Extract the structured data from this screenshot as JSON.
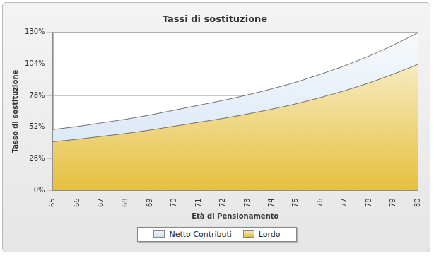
{
  "chart_data": {
    "type": "area",
    "title": "Tassi di sostituzione",
    "x_label": "Età di Pensionamento",
    "y_label": "Tasso di sostituzione",
    "categories": [
      "65",
      "66",
      "67",
      "68",
      "69",
      "70",
      "71",
      "72",
      "73",
      "74",
      "75",
      "76",
      "77",
      "78",
      "79",
      "80"
    ],
    "series": [
      {
        "name": "Netto Contributi",
        "color": "#cfe1f4",
        "values": [
          50,
          52.5,
          55.5,
          58.5,
          62,
          66,
          70,
          74,
          78.5,
          83.5,
          89,
          95.5,
          102.5,
          110.5,
          119.5,
          129.5
        ]
      },
      {
        "name": "Lordo",
        "color": "#e6c03e",
        "values": [
          40,
          42,
          44.4,
          46.8,
          49.6,
          52.8,
          56,
          59.2,
          62.8,
          66.8,
          71.2,
          76.4,
          82,
          88.4,
          95.6,
          103.6
        ]
      }
    ],
    "ylim": [
      0,
      130
    ],
    "yticks": [
      {
        "value": 0,
        "label": "0%"
      },
      {
        "value": 26,
        "label": "26%"
      },
      {
        "value": 52,
        "label": "52%"
      },
      {
        "value": 78,
        "label": "78%"
      },
      {
        "value": 104,
        "label": "104%"
      },
      {
        "value": 130,
        "label": "130%"
      }
    ],
    "grid": true,
    "legend": "bottom"
  }
}
